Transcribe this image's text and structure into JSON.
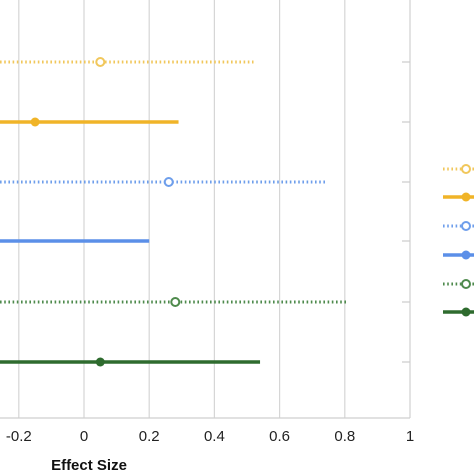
{
  "chart_data": {
    "type": "scatter",
    "variant": "forest-plot (point estimates with interval lines)",
    "title": "",
    "xlabel": "Effect Size",
    "ylabel": "",
    "xlim": [
      -0.27,
      1.0
    ],
    "x_ticks": [
      -0.2,
      0,
      0.2,
      0.4,
      0.6,
      0.8,
      1
    ],
    "x_tick_labels": [
      "-0.2",
      "0",
      "0.2",
      "0.4",
      "0.6",
      "0.8",
      "1"
    ],
    "grid": true,
    "legend_position": "right (entries partially visible, labels cut off)",
    "series": [
      {
        "point": 0.05,
        "low": -0.3,
        "high": 0.52,
        "color": "#F1C75B",
        "line": "dotted",
        "marker": "open"
      },
      {
        "point": -0.15,
        "low": -0.3,
        "high": 0.29,
        "color": "#F0B428",
        "line": "solid",
        "marker": "filled"
      },
      {
        "point": 0.26,
        "low": -0.26,
        "high": 0.74,
        "color": "#6E9EEB",
        "line": "dotted",
        "marker": "open"
      },
      {
        "point": null,
        "low": -0.3,
        "high": 0.2,
        "color": "#5B8FE8",
        "line": "solid",
        "marker": "filled"
      },
      {
        "point": 0.28,
        "low": -0.27,
        "high": 0.81,
        "color": "#4E8A4C",
        "line": "dotted",
        "marker": "open"
      },
      {
        "point": 0.05,
        "low": -0.3,
        "high": 0.54,
        "color": "#2E6B2E",
        "line": "solid",
        "marker": "filled"
      }
    ]
  }
}
